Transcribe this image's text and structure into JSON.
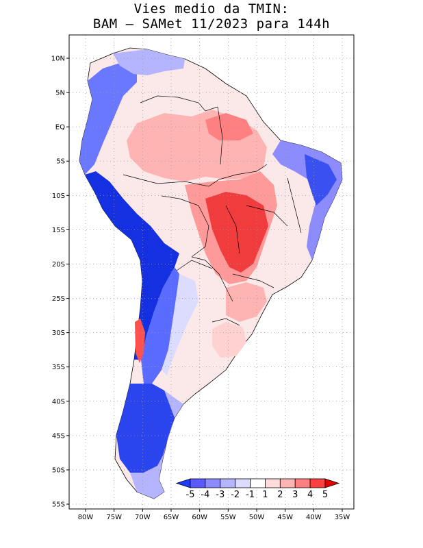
{
  "title": {
    "line1": "Vies medio da TMIN:",
    "line2": "BAM – SAMet 11/2023  para 144h"
  },
  "map": {
    "region": "South America",
    "lon_range": [
      -83,
      -34
    ],
    "lat_range": [
      -56,
      13
    ],
    "lat_ticks": [
      {
        "value": 10,
        "label": "10N"
      },
      {
        "value": 5,
        "label": "5N"
      },
      {
        "value": 0,
        "label": "EQ"
      },
      {
        "value": -5,
        "label": "5S"
      },
      {
        "value": -10,
        "label": "10S"
      },
      {
        "value": -15,
        "label": "15S"
      },
      {
        "value": -20,
        "label": "20S"
      },
      {
        "value": -25,
        "label": "25S"
      },
      {
        "value": -30,
        "label": "30S"
      },
      {
        "value": -35,
        "label": "35S"
      },
      {
        "value": -40,
        "label": "40S"
      },
      {
        "value": -45,
        "label": "45S"
      },
      {
        "value": -50,
        "label": "50S"
      },
      {
        "value": -55,
        "label": "55S"
      }
    ],
    "lon_ticks": [
      {
        "value": -80,
        "label": "80W"
      },
      {
        "value": -75,
        "label": "75W"
      },
      {
        "value": -70,
        "label": "70W"
      },
      {
        "value": -65,
        "label": "65W"
      },
      {
        "value": -60,
        "label": "60W"
      },
      {
        "value": -55,
        "label": "55W"
      },
      {
        "value": -50,
        "label": "50W"
      },
      {
        "value": -45,
        "label": "45W"
      },
      {
        "value": -40,
        "label": "40W"
      },
      {
        "value": -35,
        "label": "35W"
      }
    ]
  },
  "colorbar": {
    "labels": [
      "-5",
      "-4",
      "-3",
      "-2",
      "-1",
      "1",
      "2",
      "3",
      "4",
      "5"
    ],
    "colors": [
      "#1e3cff",
      "#5a5aff",
      "#8c8cff",
      "#b4b4ff",
      "#dcdcff",
      "#ffffff",
      "#ffdcdc",
      "#ffb4b4",
      "#ff8080",
      "#ff4040",
      "#e00000"
    ]
  },
  "colors": {
    "strong_cold": "#1530e0",
    "cold": "#6a78ff",
    "light_cold": "#c8ccff",
    "neutral": "#ffffff",
    "light_warm": "#ffd2d2",
    "warm": "#ff9a9a",
    "strong_warm": "#f03c3c"
  }
}
